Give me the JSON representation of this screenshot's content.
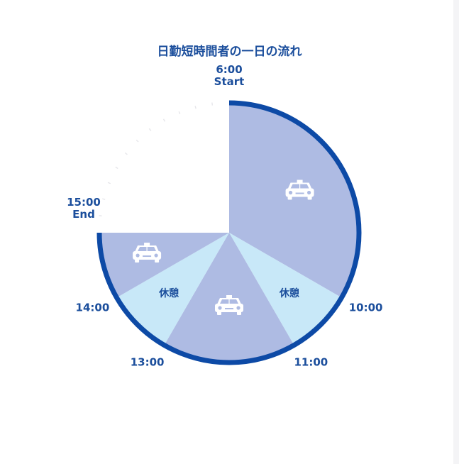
{
  "chart_data": {
    "type": "pie",
    "title": "日勤短時間者の一日の流れ",
    "clock_start_hour": 6,
    "hours_per_revolution": 12,
    "segments": [
      {
        "start": 6,
        "end": 10,
        "kind": "drive",
        "label": ""
      },
      {
        "start": 10,
        "end": 11,
        "kind": "break",
        "label": "休憩"
      },
      {
        "start": 11,
        "end": 13,
        "kind": "drive",
        "label": ""
      },
      {
        "start": 13,
        "end": 14,
        "kind": "break",
        "label": "休憩"
      },
      {
        "start": 14,
        "end": 15,
        "kind": "drive",
        "label": ""
      }
    ],
    "time_labels": [
      {
        "hour": 6,
        "text": "6:00",
        "subtext": "Start"
      },
      {
        "hour": 10,
        "text": "10:00",
        "subtext": ""
      },
      {
        "hour": 11,
        "text": "11:00",
        "subtext": ""
      },
      {
        "hour": 13,
        "text": "13:00",
        "subtext": ""
      },
      {
        "hour": 14,
        "text": "14:00",
        "subtext": ""
      },
      {
        "hour": 15,
        "text": "15:00",
        "subtext": "End"
      }
    ]
  },
  "colors": {
    "drive": "#aebbe3",
    "break": "#c8e8f8",
    "outline": "#0d4aa6",
    "title": "#1b4e9c",
    "label": "#1b4e9c",
    "icon": "#ffffff"
  },
  "icons": {
    "drive": "taxi-icon"
  }
}
